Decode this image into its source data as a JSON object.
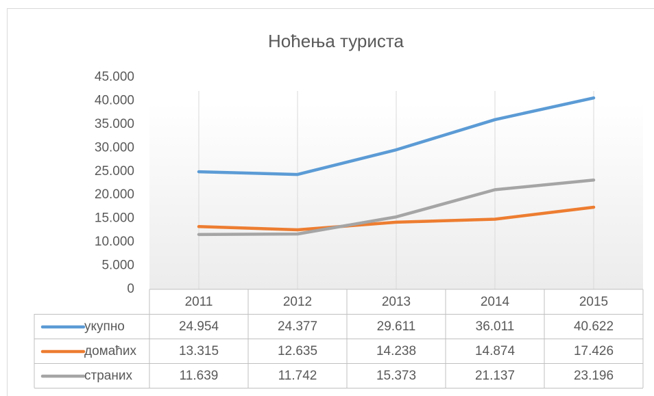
{
  "chart_data": {
    "type": "line",
    "title": "Ноћења туриста",
    "categories": [
      "2011",
      "2012",
      "2013",
      "2014",
      "2015"
    ],
    "series": [
      {
        "name": "укупно",
        "color": "#5b9bd5",
        "values": [
          24954,
          24377,
          29611,
          36011,
          40622
        ],
        "value_labels": [
          "24.954",
          "24.377",
          "29.611",
          "36.011",
          "40.622"
        ]
      },
      {
        "name": "домаћих",
        "color": "#ed7d31",
        "values": [
          13315,
          12635,
          14238,
          14874,
          17426
        ],
        "value_labels": [
          "13.315",
          "12.635",
          "14.238",
          "14.874",
          "17.426"
        ]
      },
      {
        "name": "страних",
        "color": "#a5a5a5",
        "values": [
          11639,
          11742,
          15373,
          21137,
          23196
        ],
        "value_labels": [
          "11.639",
          "11.742",
          "15.373",
          "21.137",
          "23.196"
        ]
      }
    ],
    "ylim": [
      0,
      45000
    ],
    "yticks": [
      0,
      {
        "value": 5000,
        "label": "5.000"
      },
      {
        "value": 10000,
        "label": "10.000"
      },
      {
        "value": 15000,
        "label": "15.000"
      },
      {
        "value": 20000,
        "label": "20.000"
      },
      {
        "value": 25000,
        "label": "25.000"
      },
      {
        "value": 30000,
        "label": "30.000"
      },
      {
        "value": 35000,
        "label": "35.000"
      },
      {
        "value": 40000,
        "label": "40.000"
      },
      {
        "value": 45000,
        "label": "45.000"
      }
    ],
    "data_table": true
  }
}
